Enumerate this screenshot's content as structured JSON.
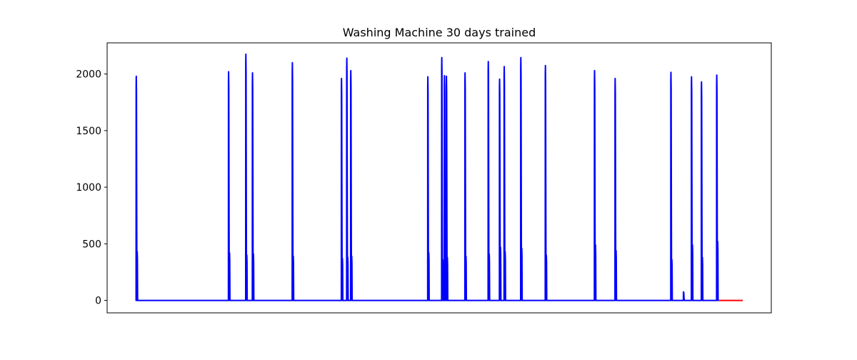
{
  "chart_data": {
    "type": "line",
    "title": "Washing Machine 30 days trained",
    "xlabel": "",
    "ylabel": "",
    "ylim": [
      -110,
      2275
    ],
    "xlim": [
      0,
      1000
    ],
    "yticks": [
      0,
      500,
      1000,
      1500,
      2000
    ],
    "x_tick_labels_shown": false,
    "grid": false,
    "legend": "none",
    "colors": {
      "actual": "#0000ff",
      "prediction": "#ff0000",
      "axes": "#000000"
    },
    "series": [
      {
        "id": "actual",
        "color": "#0000ff",
        "baseline": 0,
        "spikes": [
          {
            "x": 44,
            "peak": 1980,
            "tail": 430
          },
          {
            "x": 183,
            "peak": 2020,
            "tail": 420
          },
          {
            "x": 209,
            "peak": 2175,
            "tail": 400
          },
          {
            "x": 219,
            "peak": 2010,
            "tail": 410
          },
          {
            "x": 279,
            "peak": 2100,
            "tail": 390
          },
          {
            "x": 353,
            "peak": 1960,
            "tail": 370
          },
          {
            "x": 361,
            "peak": 2140,
            "tail": 380
          },
          {
            "x": 367,
            "peak": 2030,
            "tail": 390
          },
          {
            "x": 483,
            "peak": 1975,
            "tail": 420
          },
          {
            "x": 504,
            "peak": 2145,
            "tail": 360
          },
          {
            "x": 508,
            "peak": 1985,
            "tail": 400
          },
          {
            "x": 511,
            "peak": 1980,
            "tail": 380
          },
          {
            "x": 539,
            "peak": 2010,
            "tail": 390
          },
          {
            "x": 574,
            "peak": 2110,
            "tail": 410
          },
          {
            "x": 591,
            "peak": 1955,
            "tail": 470
          },
          {
            "x": 598,
            "peak": 2065,
            "tail": 430
          },
          {
            "x": 623,
            "peak": 2145,
            "tail": 460
          },
          {
            "x": 660,
            "peak": 2075,
            "tail": 400
          },
          {
            "x": 734,
            "peak": 2030,
            "tail": 490
          },
          {
            "x": 765,
            "peak": 1960,
            "tail": 440
          },
          {
            "x": 849,
            "peak": 2015,
            "tail": 360
          },
          {
            "x": 868,
            "peak": 75,
            "tail": 0
          },
          {
            "x": 880,
            "peak": 1975,
            "tail": 490
          },
          {
            "x": 895,
            "peak": 1930,
            "tail": 380
          },
          {
            "x": 918,
            "peak": 1990,
            "tail": 520
          }
        ],
        "x_start": 44,
        "x_end": 921
      },
      {
        "id": "prediction",
        "color": "#ff0000",
        "x_start": 921,
        "x_end": 957,
        "value": 0
      }
    ]
  }
}
